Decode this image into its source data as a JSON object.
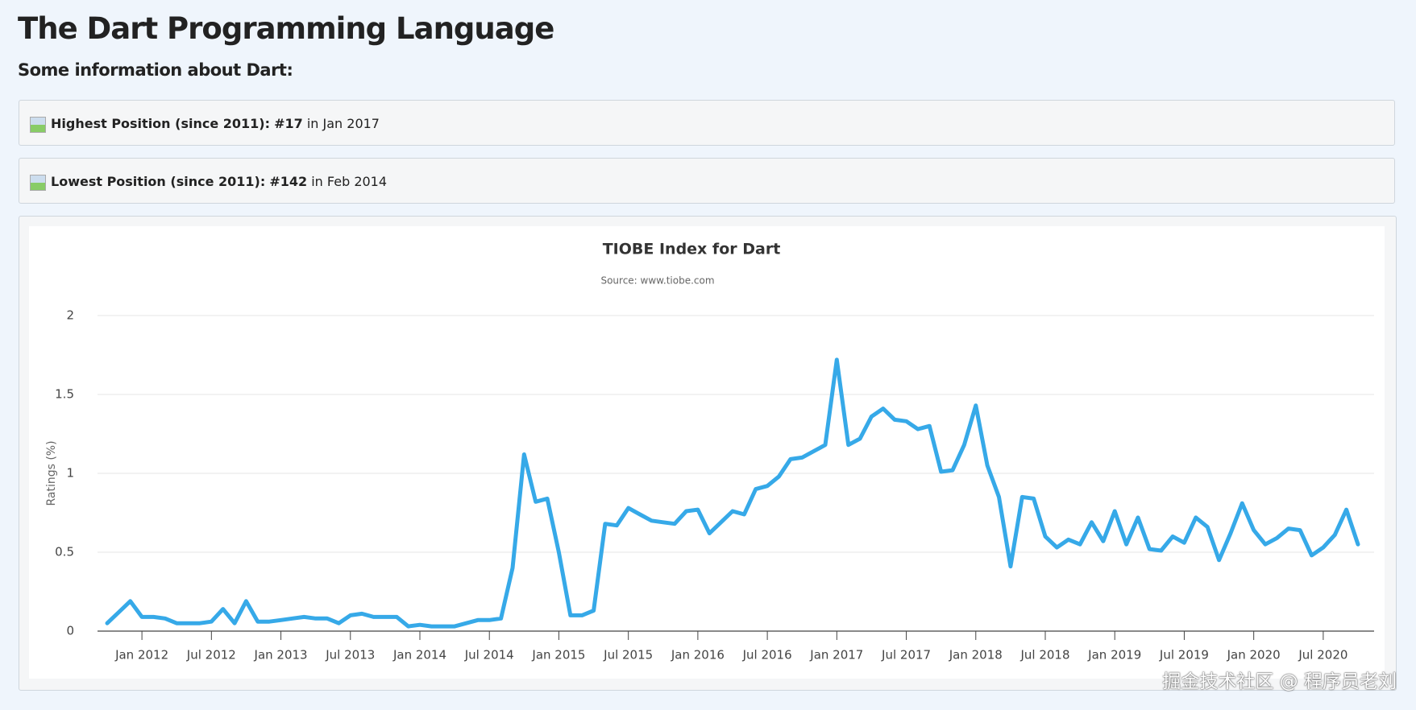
{
  "page": {
    "title": "The Dart Programming Language",
    "subtitle": "Some information about Dart:",
    "info": [
      {
        "label": "Highest Position (since 2011):",
        "value": "#17",
        "when": "in Jan 2017"
      },
      {
        "label": "Lowest Position (since 2011):",
        "value": "#142",
        "when": "in Feb 2014"
      }
    ],
    "watermark": "掘金技术社区 @ 程序员老刘"
  },
  "chart_data": {
    "type": "line",
    "title": "TIOBE Index for Dart",
    "subtitle": "Source: www.tiobe.com",
    "y_label": "Ratings (%)",
    "x": [
      "Oct 2011",
      "Nov 2011",
      "Dec 2011",
      "Jan 2012",
      "Feb 2012",
      "Mar 2012",
      "Apr 2012",
      "May 2012",
      "Jun 2012",
      "Jul 2012",
      "Aug 2012",
      "Sep 2012",
      "Oct 2012",
      "Nov 2012",
      "Dec 2012",
      "Jan 2013",
      "Feb 2013",
      "Mar 2013",
      "Apr 2013",
      "May 2013",
      "Jun 2013",
      "Jul 2013",
      "Aug 2013",
      "Sep 2013",
      "Oct 2013",
      "Nov 2013",
      "Dec 2013",
      "Jan 2014",
      "Feb 2014",
      "Mar 2014",
      "Apr 2014",
      "May 2014",
      "Jun 2014",
      "Jul 2014",
      "Aug 2014",
      "Sep 2014",
      "Oct 2014",
      "Nov 2014",
      "Dec 2014",
      "Jan 2015",
      "Feb 2015",
      "Mar 2015",
      "Apr 2015",
      "May 2015",
      "Jun 2015",
      "Jul 2015",
      "Aug 2015",
      "Sep 2015",
      "Oct 2015",
      "Nov 2015",
      "Dec 2015",
      "Jan 2016",
      "Feb 2016",
      "Mar 2016",
      "Apr 2016",
      "May 2016",
      "Jun 2016",
      "Jul 2016",
      "Aug 2016",
      "Sep 2016",
      "Oct 2016",
      "Nov 2016",
      "Dec 2016",
      "Jan 2017",
      "Feb 2017",
      "Mar 2017",
      "Apr 2017",
      "May 2017",
      "Jun 2017",
      "Jul 2017",
      "Aug 2017",
      "Sep 2017",
      "Oct 2017",
      "Nov 2017",
      "Dec 2017",
      "Jan 2018",
      "Feb 2018",
      "Mar 2018",
      "Apr 2018",
      "May 2018",
      "Jun 2018",
      "Jul 2018",
      "Aug 2018",
      "Sep 2018",
      "Oct 2018",
      "Nov 2018",
      "Dec 2018",
      "Jan 2019",
      "Feb 2019",
      "Mar 2019",
      "Apr 2019",
      "May 2019",
      "Jun 2019",
      "Jul 2019",
      "Aug 2019",
      "Sep 2019",
      "Oct 2019",
      "Nov 2019",
      "Dec 2019",
      "Jan 2020",
      "Feb 2020",
      "Mar 2020",
      "Apr 2020",
      "May 2020",
      "Jun 2020",
      "Jul 2020",
      "Aug 2020",
      "Sep 2020",
      "Oct 2020"
    ],
    "series": [
      {
        "color": "#36a9e8",
        "values": [
          0.05,
          0.12,
          0.19,
          0.09,
          0.09,
          0.08,
          0.05,
          0.05,
          0.05,
          0.06,
          0.14,
          0.05,
          0.19,
          0.06,
          0.06,
          0.07,
          0.08,
          0.09,
          0.08,
          0.08,
          0.05,
          0.1,
          0.11,
          0.09,
          0.09,
          0.09,
          0.03,
          0.04,
          0.03,
          0.03,
          0.03,
          0.05,
          0.07,
          0.07,
          0.08,
          0.4,
          1.12,
          0.82,
          0.84,
          0.5,
          0.1,
          0.1,
          0.13,
          0.68,
          0.67,
          0.78,
          0.74,
          0.7,
          0.69,
          0.68,
          0.76,
          0.77,
          0.62,
          0.69,
          0.76,
          0.74,
          0.9,
          0.92,
          0.98,
          1.09,
          1.1,
          1.14,
          1.18,
          1.72,
          1.18,
          1.22,
          1.36,
          1.41,
          1.34,
          1.33,
          1.28,
          1.3,
          1.01,
          1.02,
          1.18,
          1.43,
          1.05,
          0.85,
          0.41,
          0.85,
          0.84,
          0.6,
          0.53,
          0.58,
          0.55,
          0.69,
          0.57,
          0.76,
          0.55,
          0.72,
          0.52,
          0.51,
          0.6,
          0.56,
          0.72,
          0.66,
          0.45,
          0.62,
          0.81,
          0.64,
          0.55,
          0.59,
          0.65,
          0.64,
          0.48,
          0.53,
          0.61,
          0.77,
          0.55
        ]
      }
    ],
    "xticks": [
      "Jan 2012",
      "Jul 2012",
      "Jan 2013",
      "Jul 2013",
      "Jan 2014",
      "Jul 2014",
      "Jan 2015",
      "Jul 2015",
      "Jan 2016",
      "Jul 2016",
      "Jan 2017",
      "Jul 2017",
      "Jan 2018",
      "Jul 2018",
      "Jan 2019",
      "Jul 2019",
      "Jan 2020",
      "Jul 2020"
    ],
    "ylim": [
      0,
      2
    ],
    "yticks": [
      0,
      0.5,
      1,
      1.5,
      2
    ],
    "grid": true
  }
}
